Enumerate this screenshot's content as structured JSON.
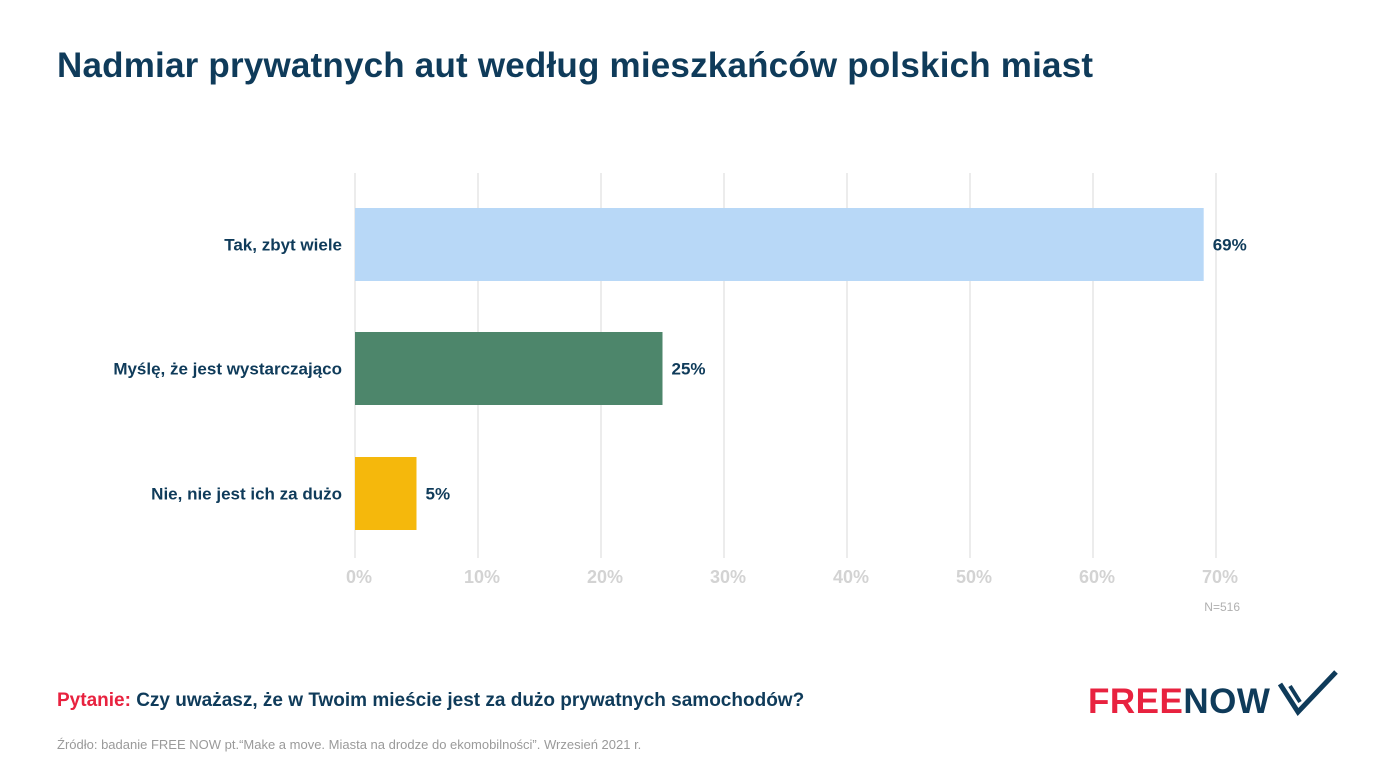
{
  "title": "Nadmiar prywatnych aut według mieszkańców polskich miast",
  "chart_data": {
    "type": "bar",
    "orientation": "horizontal",
    "categories": [
      "Tak, zbyt wiele",
      "Myślę, że jest wystarczająco",
      "Nie, nie jest ich za dużo"
    ],
    "values": [
      69,
      25,
      5
    ],
    "value_labels": [
      "69%",
      "25%",
      "5%"
    ],
    "colors": [
      "#b8d8f7",
      "#4d866b",
      "#f5b80c"
    ],
    "xlim": [
      0,
      70
    ],
    "x_ticks": [
      0,
      10,
      20,
      30,
      40,
      50,
      60,
      70
    ],
    "x_tick_labels": [
      "0%",
      "10%",
      "20%",
      "30%",
      "40%",
      "50%",
      "60%",
      "70%"
    ],
    "grid": true,
    "note": "N=516"
  },
  "question": {
    "lead": "Pytanie:",
    "text": "Czy uważasz, że w Twoim mieście jest za dużo prywatnych samochodów?"
  },
  "source": "Źródło: badanie FREE NOW pt.“Make a move. Miasta na drodze do ekomobilności”. Wrzesień 2021 r.",
  "logo": {
    "part1": "FREE",
    "part2": "NOW",
    "icon": "check-chevron-icon"
  },
  "colors": {
    "accent": "#e8223f",
    "navy": "#0f3b5a",
    "muted": "#9a9a9a"
  }
}
